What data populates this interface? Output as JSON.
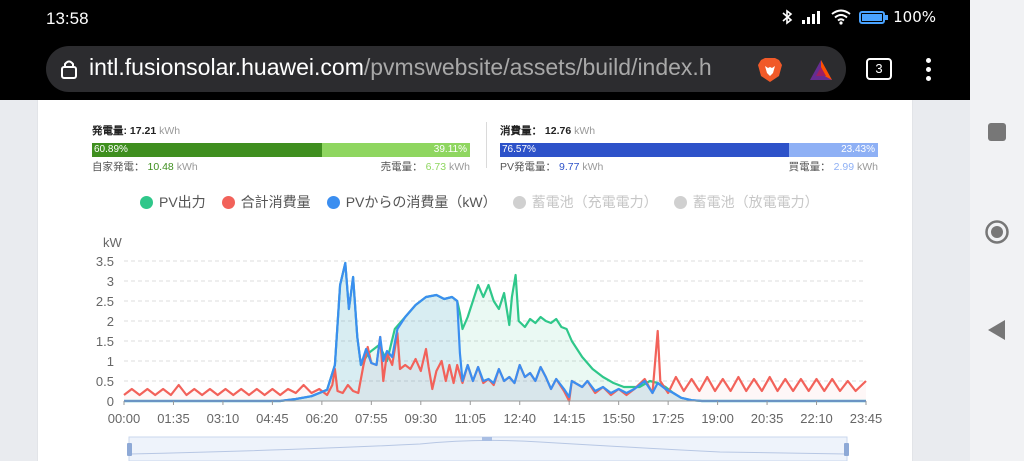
{
  "status": {
    "time": "13:58",
    "battery": "100%"
  },
  "browser": {
    "url_host": "intl.fusionsolar.huawei.com",
    "url_path": "/pvmswebsite/assets/build/index.h",
    "tab_count": "3"
  },
  "generation": {
    "title": "発電量:",
    "value": "17.21",
    "unit": "kWh",
    "self_pct": "60.89%",
    "sell_pct": "39.11%",
    "self_label": "自家発電：",
    "self_value": "10.48",
    "sell_label": "売電量：",
    "sell_value": "6.73",
    "colors": {
      "self": "#3f8f1f",
      "sell": "#8fd660"
    }
  },
  "consumption": {
    "title": "消費量：",
    "value": "12.76",
    "unit": "kWh",
    "pv_pct": "76.57%",
    "buy_pct": "23.43%",
    "pv_label": "PV発電量：",
    "pv_value": "9.77",
    "buy_label": "買電量：",
    "buy_value": "2.99",
    "colors": {
      "pv": "#2d52c9",
      "buy": "#8eb0f5"
    }
  },
  "legend": [
    {
      "name": "PV出力",
      "color": "#2fc78a",
      "active": true
    },
    {
      "name": "合計消費量",
      "color": "#f2625a",
      "active": true
    },
    {
      "name": "PVからの消費量（kW）",
      "color": "#3b8ef0",
      "active": true
    },
    {
      "name": "蓄電池（充電電力）",
      "color": "#d0d0d0",
      "active": false
    },
    {
      "name": "蓄電池（放電電力）",
      "color": "#d0d0d0",
      "active": false
    }
  ],
  "chart_data": {
    "type": "line",
    "ylabel": "kW",
    "ylim": [
      0,
      3.5
    ],
    "yticks": [
      "0",
      "0.5",
      "1",
      "1.5",
      "2",
      "2.5",
      "3",
      "3.5"
    ],
    "xlim_minutes": [
      0,
      1425
    ],
    "xticks": [
      "00:00",
      "01:35",
      "03:10",
      "04:45",
      "06:20",
      "07:55",
      "09:30",
      "11:05",
      "12:40",
      "14:15",
      "15:50",
      "17:25",
      "19:00",
      "20:35",
      "22:10",
      "23:45"
    ],
    "grid": true,
    "series": [
      {
        "name": "PV出力",
        "color": "#2fc78a",
        "points": [
          [
            0,
            0
          ],
          [
            300,
            0
          ],
          [
            330,
            0.05
          ],
          [
            360,
            0.12
          ],
          [
            390,
            0.28
          ],
          [
            405,
            0.9
          ],
          [
            415,
            2.9
          ],
          [
            425,
            3.45
          ],
          [
            432,
            2.3
          ],
          [
            440,
            3.1
          ],
          [
            448,
            1.6
          ],
          [
            455,
            0.9
          ],
          [
            470,
            1.2
          ],
          [
            490,
            1.4
          ],
          [
            505,
            1.0
          ],
          [
            520,
            1.8
          ],
          [
            540,
            2.1
          ],
          [
            560,
            2.4
          ],
          [
            580,
            2.6
          ],
          [
            600,
            2.65
          ],
          [
            615,
            2.55
          ],
          [
            630,
            2.6
          ],
          [
            640,
            2.5
          ],
          [
            645,
            2.2
          ],
          [
            650,
            1.8
          ],
          [
            660,
            2.1
          ],
          [
            670,
            2.5
          ],
          [
            680,
            2.9
          ],
          [
            690,
            2.6
          ],
          [
            700,
            2.9
          ],
          [
            710,
            2.5
          ],
          [
            720,
            2.3
          ],
          [
            730,
            2.7
          ],
          [
            740,
            1.9
          ],
          [
            745,
            2.6
          ],
          [
            752,
            3.15
          ],
          [
            758,
            2.0
          ],
          [
            770,
            1.85
          ],
          [
            780,
            2.05
          ],
          [
            790,
            1.95
          ],
          [
            800,
            2.1
          ],
          [
            810,
            2.0
          ],
          [
            820,
            1.95
          ],
          [
            830,
            2.05
          ],
          [
            840,
            1.85
          ],
          [
            850,
            1.8
          ],
          [
            860,
            1.5
          ],
          [
            870,
            1.3
          ],
          [
            880,
            1.1
          ],
          [
            890,
            0.95
          ],
          [
            900,
            0.8
          ],
          [
            920,
            0.6
          ],
          [
            940,
            0.45
          ],
          [
            960,
            0.35
          ],
          [
            990,
            0.35
          ],
          [
            1010,
            0.5
          ],
          [
            1025,
            0.45
          ],
          [
            1040,
            0.35
          ],
          [
            1055,
            0.2
          ],
          [
            1070,
            0.08
          ],
          [
            1090,
            0.02
          ],
          [
            1110,
            0
          ],
          [
            1425,
            0
          ]
        ]
      },
      {
        "name": "合計消費量",
        "color": "#f2625a",
        "points": [
          [
            0,
            0.15
          ],
          [
            15,
            0.3
          ],
          [
            30,
            0.15
          ],
          [
            45,
            0.3
          ],
          [
            60,
            0.15
          ],
          [
            75,
            0.3
          ],
          [
            90,
            0.15
          ],
          [
            105,
            0.4
          ],
          [
            120,
            0.15
          ],
          [
            135,
            0.3
          ],
          [
            150,
            0.15
          ],
          [
            165,
            0.3
          ],
          [
            180,
            0.15
          ],
          [
            195,
            0.3
          ],
          [
            210,
            0.15
          ],
          [
            225,
            0.3
          ],
          [
            240,
            0.15
          ],
          [
            255,
            0.3
          ],
          [
            270,
            0.15
          ],
          [
            285,
            0.3
          ],
          [
            300,
            0.15
          ],
          [
            315,
            0.3
          ],
          [
            330,
            0.2
          ],
          [
            345,
            0.4
          ],
          [
            360,
            0.2
          ],
          [
            375,
            0.3
          ],
          [
            390,
            0.15
          ],
          [
            400,
            0.4
          ],
          [
            405,
            0.8
          ],
          [
            410,
            0.25
          ],
          [
            420,
            0.2
          ],
          [
            430,
            0.4
          ],
          [
            440,
            0.25
          ],
          [
            450,
            0.2
          ],
          [
            460,
            0.9
          ],
          [
            468,
            1.35
          ],
          [
            475,
            0.95
          ],
          [
            485,
            0.9
          ],
          [
            492,
            1.6
          ],
          [
            498,
            0.5
          ],
          [
            505,
            1.2
          ],
          [
            515,
            0.9
          ],
          [
            525,
            1.7
          ],
          [
            530,
            0.8
          ],
          [
            540,
            0.9
          ],
          [
            550,
            0.8
          ],
          [
            560,
            1.05
          ],
          [
            570,
            0.75
          ],
          [
            580,
            1.3
          ],
          [
            585,
            0.85
          ],
          [
            592,
            0.3
          ],
          [
            600,
            0.75
          ],
          [
            610,
            1.0
          ],
          [
            618,
            0.5
          ],
          [
            625,
            0.9
          ],
          [
            633,
            0.45
          ],
          [
            640,
            0.9
          ],
          [
            650,
            0.45
          ],
          [
            660,
            0.9
          ],
          [
            670,
            0.5
          ],
          [
            680,
            0.85
          ],
          [
            690,
            0.45
          ],
          [
            700,
            0.55
          ],
          [
            710,
            0.4
          ],
          [
            720,
            0.8
          ],
          [
            730,
            0.5
          ],
          [
            740,
            0.6
          ],
          [
            750,
            0.45
          ],
          [
            760,
            0.9
          ],
          [
            770,
            0.6
          ],
          [
            780,
            0.7
          ],
          [
            790,
            0.5
          ],
          [
            800,
            0.85
          ],
          [
            810,
            0.6
          ],
          [
            820,
            0.3
          ],
          [
            830,
            0.55
          ],
          [
            845,
            0.25
          ],
          [
            855,
            0.0
          ],
          [
            860,
            0.5
          ],
          [
            880,
            0.35
          ],
          [
            890,
            0.5
          ],
          [
            905,
            0.2
          ],
          [
            920,
            0.35
          ],
          [
            935,
            0.15
          ],
          [
            950,
            0.3
          ],
          [
            965,
            0.15
          ],
          [
            980,
            0.3
          ],
          [
            1000,
            0.55
          ],
          [
            1015,
            0.2
          ],
          [
            1025,
            1.75
          ],
          [
            1030,
            0.5
          ],
          [
            1045,
            0.2
          ],
          [
            1060,
            0.6
          ],
          [
            1075,
            0.25
          ],
          [
            1090,
            0.55
          ],
          [
            1105,
            0.25
          ],
          [
            1120,
            0.6
          ],
          [
            1135,
            0.25
          ],
          [
            1150,
            0.55
          ],
          [
            1165,
            0.25
          ],
          [
            1180,
            0.6
          ],
          [
            1195,
            0.25
          ],
          [
            1210,
            0.55
          ],
          [
            1225,
            0.25
          ],
          [
            1240,
            0.6
          ],
          [
            1255,
            0.25
          ],
          [
            1270,
            0.55
          ],
          [
            1285,
            0.25
          ],
          [
            1300,
            0.55
          ],
          [
            1315,
            0.25
          ],
          [
            1330,
            0.55
          ],
          [
            1345,
            0.25
          ],
          [
            1360,
            0.55
          ],
          [
            1375,
            0.25
          ],
          [
            1390,
            0.5
          ],
          [
            1405,
            0.25
          ],
          [
            1425,
            0.5
          ]
        ]
      },
      {
        "name": "PVからの消費量（kW）",
        "color": "#3b8ef0",
        "points": [
          [
            0,
            0
          ],
          [
            300,
            0
          ],
          [
            330,
            0.05
          ],
          [
            360,
            0.12
          ],
          [
            390,
            0.28
          ],
          [
            405,
            0.9
          ],
          [
            415,
            2.9
          ],
          [
            425,
            3.45
          ],
          [
            432,
            2.3
          ],
          [
            440,
            3.1
          ],
          [
            448,
            1.6
          ],
          [
            455,
            0.9
          ],
          [
            465,
            1.3
          ],
          [
            475,
            0.95
          ],
          [
            485,
            0.9
          ],
          [
            492,
            1.6
          ],
          [
            498,
            1.0
          ],
          [
            505,
            1.25
          ],
          [
            515,
            1.1
          ],
          [
            525,
            1.8
          ],
          [
            540,
            2.1
          ],
          [
            560,
            2.4
          ],
          [
            580,
            2.6
          ],
          [
            600,
            2.65
          ],
          [
            615,
            2.55
          ],
          [
            630,
            2.6
          ],
          [
            640,
            2.5
          ],
          [
            645,
            1.2
          ],
          [
            650,
            0.5
          ],
          [
            660,
            0.9
          ],
          [
            670,
            0.5
          ],
          [
            680,
            0.85
          ],
          [
            690,
            0.5
          ],
          [
            700,
            0.55
          ],
          [
            710,
            0.45
          ],
          [
            720,
            0.8
          ],
          [
            730,
            0.5
          ],
          [
            740,
            0.6
          ],
          [
            750,
            0.45
          ],
          [
            760,
            0.9
          ],
          [
            770,
            0.6
          ],
          [
            780,
            0.7
          ],
          [
            790,
            0.5
          ],
          [
            800,
            0.85
          ],
          [
            810,
            0.6
          ],
          [
            820,
            0.3
          ],
          [
            830,
            0.55
          ],
          [
            845,
            0.3
          ],
          [
            855,
            0.1
          ],
          [
            860,
            0.5
          ],
          [
            880,
            0.35
          ],
          [
            890,
            0.5
          ],
          [
            905,
            0.25
          ],
          [
            920,
            0.35
          ],
          [
            935,
            0.2
          ],
          [
            950,
            0.3
          ],
          [
            965,
            0.2
          ],
          [
            980,
            0.3
          ],
          [
            1000,
            0.5
          ],
          [
            1015,
            0.2
          ],
          [
            1025,
            0.45
          ],
          [
            1040,
            0.3
          ],
          [
            1055,
            0.2
          ],
          [
            1070,
            0.08
          ],
          [
            1090,
            0.02
          ],
          [
            1110,
            0
          ],
          [
            1425,
            0
          ]
        ]
      }
    ]
  }
}
